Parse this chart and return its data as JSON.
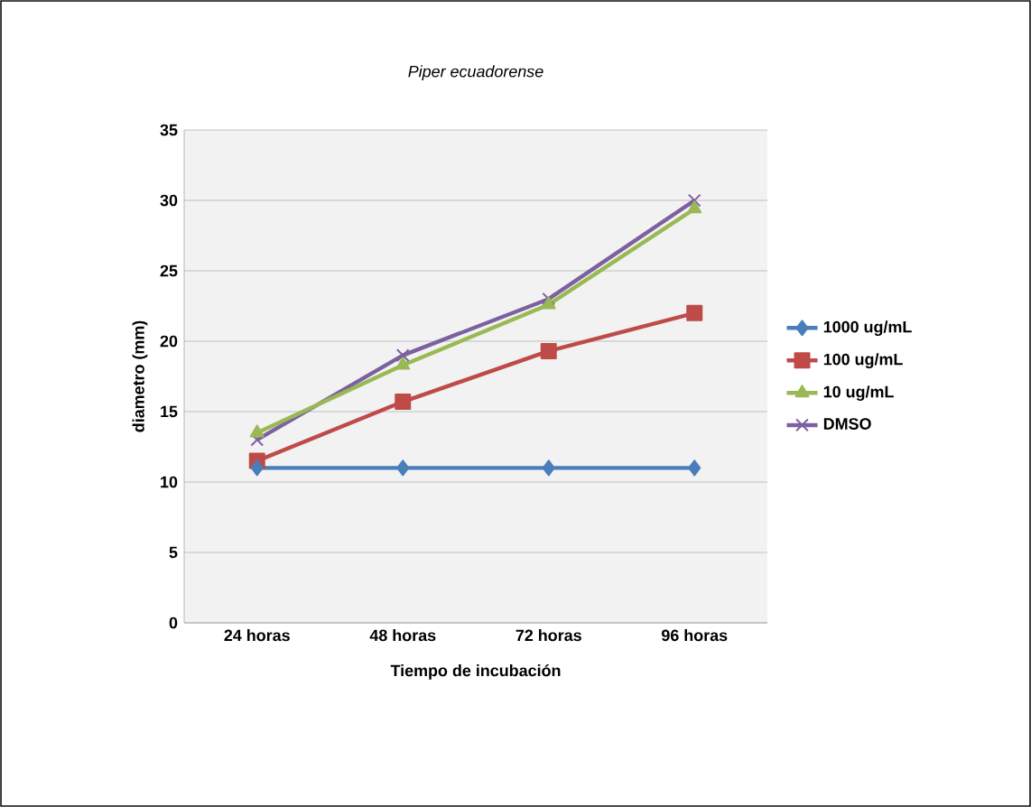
{
  "chart_data": {
    "type": "line",
    "title": "Piper ecuadorense",
    "xlabel": "Tiempo de incubación",
    "ylabel": "diametro (mm)",
    "categories": [
      "24 horas",
      "48 horas",
      "72 horas",
      "96 horas"
    ],
    "series": [
      {
        "name": "1000 ug/mL",
        "color": "#4a7ebb",
        "marker": "diamond",
        "values": [
          11,
          11,
          11,
          11
        ]
      },
      {
        "name": "100 ug/mL",
        "color": "#be4b48",
        "marker": "square",
        "values": [
          11.5,
          15.7,
          19.3,
          22
        ]
      },
      {
        "name": "10 ug/mL",
        "color": "#98b954",
        "marker": "triangle",
        "values": [
          13.5,
          18.3,
          22.6,
          29.4
        ]
      },
      {
        "name": "DMSO",
        "color": "#7d60a0",
        "marker": "cross",
        "values": [
          13,
          19,
          23,
          30
        ]
      }
    ],
    "ylim": [
      0,
      35
    ],
    "yticks": [
      0,
      5,
      10,
      15,
      20,
      25,
      30,
      35
    ],
    "grid": "y",
    "legend": "right",
    "line_style": "solid"
  }
}
